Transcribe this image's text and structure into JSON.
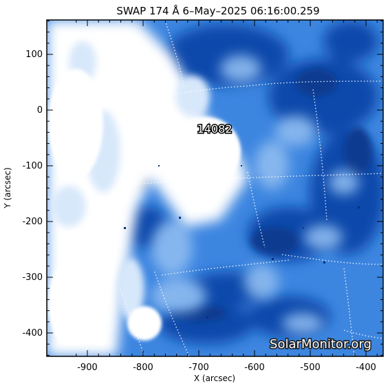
{
  "title": "SWAP 174 Å  6–May–2025 06:16:00.259",
  "region_label": "14082",
  "watermark": "SolarMonitor.org",
  "x_axis": {
    "label": "X (arcsec)",
    "ticks": [
      "-900",
      "-800",
      "-700",
      "-600",
      "-500",
      "-400"
    ]
  },
  "y_axis": {
    "label": "Y (arcsec)",
    "ticks": [
      "100",
      "0",
      "-100",
      "-200",
      "-300",
      "-400"
    ]
  },
  "colors": {
    "background": "#ffffff",
    "plasma_dark": "#0b3f9e",
    "plasma_mid": "#2a6fd6",
    "plasma_light": "#8fbdf2",
    "grid": "#ffffff"
  }
}
